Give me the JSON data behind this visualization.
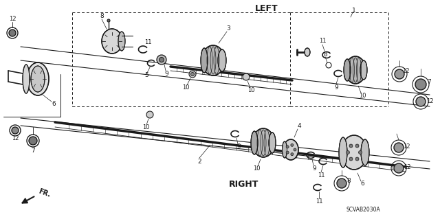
{
  "bg_color": "#ffffff",
  "line_color": "#1a1a1a",
  "label_left": "LEFT",
  "label_right": "RIGHT",
  "ref_code": "SCVAB2030A",
  "fr_label": "FR.",
  "figsize": [
    6.4,
    3.19
  ],
  "dpi": 100
}
